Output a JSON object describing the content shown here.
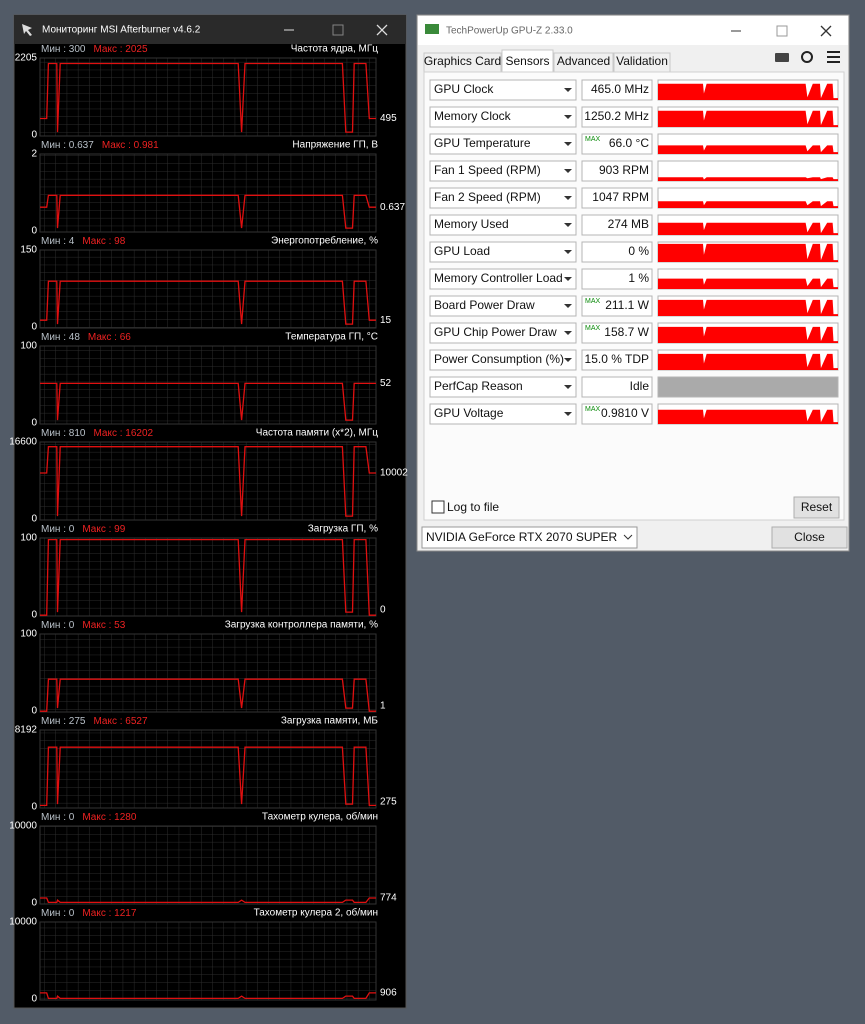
{
  "afterburner": {
    "title": "Мониторинг MSI Afterburner v4.6.2",
    "panels": [
      {
        "min": "Мин : 300",
        "max": "Макс : 2025",
        "label": "Частота ядра, МГц",
        "top": 2205,
        "bottom": 0,
        "current": 495
      },
      {
        "min": "Мин : 0.637",
        "max": "Макс : 0.981",
        "label": "Напряжение ГП, В",
        "top": 2,
        "bottom": 0,
        "current": 0.637
      },
      {
        "min": "Мин : 4",
        "max": "Макс : 98",
        "label": "Энергопотребление, %",
        "top": 150,
        "bottom": 0,
        "current": 15
      },
      {
        "min": "Мин : 48",
        "max": "Макс : 66",
        "label": "Температура ГП, °С",
        "top": 100,
        "bottom": 0,
        "current": 52
      },
      {
        "min": "Мин : 810",
        "max": "Макс : 16202",
        "label": "Частота памяти (x*2), МГц",
        "top": 16600,
        "bottom": 0,
        "current": 10002
      },
      {
        "min": "Мин : 0",
        "max": "Макс : 99",
        "label": "Загрузка ГП, %",
        "top": 100,
        "bottom": 0,
        "current": 0
      },
      {
        "min": "Мин : 0",
        "max": "Макс : 53",
        "label": "Загрузка контроллера памяти, %",
        "top": 100,
        "bottom": 0,
        "current": 1
      },
      {
        "min": "Мин : 275",
        "max": "Макс : 6527",
        "label": "Загрузка памяти, МБ",
        "top": 8192,
        "bottom": 0,
        "current": 275
      },
      {
        "min": "Мин : 0",
        "max": "Макс : 1280",
        "label": "Тахометр кулера, об/мин",
        "top": 10000,
        "bottom": 0,
        "current": 774
      },
      {
        "min": "Мин : 0",
        "max": "Макс : 1217",
        "label": "Тахометр кулера 2, об/мин",
        "top": 10000,
        "bottom": 0,
        "current": 906
      }
    ]
  },
  "gpuz": {
    "title": "TechPowerUp GPU-Z 2.33.0",
    "tabs": [
      "Graphics Card",
      "Sensors",
      "Advanced",
      "Validation"
    ],
    "sensors": [
      {
        "name": "GPU Clock",
        "value": "465.0 MHz"
      },
      {
        "name": "Memory Clock",
        "value": "1250.2 MHz"
      },
      {
        "name": "GPU Temperature",
        "badge": "MAX",
        "value": "66.0 °C"
      },
      {
        "name": "Fan 1 Speed (RPM)",
        "value": "903 RPM"
      },
      {
        "name": "Fan 2 Speed (RPM)",
        "value": "1047 RPM"
      },
      {
        "name": "Memory Used",
        "value": "274 MB"
      },
      {
        "name": "GPU Load",
        "value": "0 %"
      },
      {
        "name": "Memory Controller Load",
        "value": "1 %"
      },
      {
        "name": "Board Power Draw",
        "badge": "MAX",
        "value": "211.1 W"
      },
      {
        "name": "GPU Chip Power Draw",
        "badge": "MAX",
        "value": "158.7 W"
      },
      {
        "name": "Power Consumption (%)",
        "value": "15.0 % TDP"
      },
      {
        "name": "PerfCap Reason",
        "value": "Idle"
      },
      {
        "name": "GPU Voltage",
        "badge": "MAX",
        "value": "0.9810 V"
      }
    ],
    "log_to_file": "Log to file",
    "reset": "Reset",
    "gpu": "NVIDIA GeForce RTX 2070 SUPER",
    "close": "Close"
  }
}
